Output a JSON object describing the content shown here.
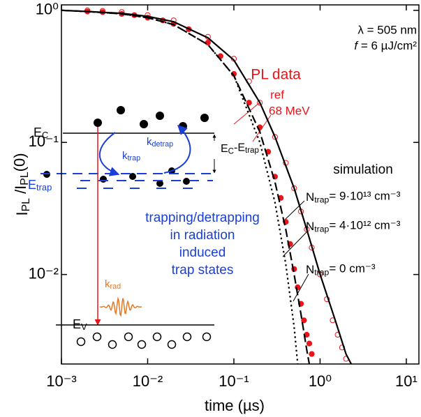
{
  "chart_data": {
    "type": "line",
    "xlabel": "time (µs)",
    "ylabel": [
      "I",
      "PL",
      " /I",
      "PL",
      "(0)"
    ],
    "xscale": "log",
    "yscale": "log",
    "xlim": [
      0.001,
      14
    ],
    "ylim": [
      0.0021,
      1.1
    ],
    "xticks": [
      {
        "value": 0.001,
        "label": "10⁻³"
      },
      {
        "value": 0.01,
        "label": "10⁻²"
      },
      {
        "value": 0.1,
        "label": "10⁻¹"
      },
      {
        "value": 1,
        "label": "10⁰"
      },
      {
        "value": 10,
        "label": "10¹"
      }
    ],
    "yticks": [
      {
        "value": 0.01,
        "label": "10⁻²"
      },
      {
        "value": 0.1,
        "label": "10⁻¹"
      },
      {
        "value": 1,
        "label": "10⁰"
      }
    ],
    "grid": false,
    "annotations": {
      "lambda": "λ = 505 nm",
      "fluence_symbol": "f",
      "fluence": " = 6 µJ/cm²",
      "pl_data": "PL data",
      "simulation": "simulation"
    },
    "series": [
      {
        "name": "ref",
        "type": "scatter",
        "marker": "filled",
        "color": "#e8151b",
        "x": [
          0.002,
          0.003,
          0.005,
          0.007,
          0.01,
          0.015,
          0.02,
          0.03,
          0.05,
          0.07,
          0.1,
          0.15,
          0.2,
          0.25,
          0.3,
          0.35,
          0.4,
          0.45,
          0.5,
          0.55,
          0.6,
          0.65,
          0.7,
          0.75,
          0.8
        ],
        "values": [
          0.98,
          0.97,
          0.94,
          0.92,
          0.88,
          0.84,
          0.79,
          0.72,
          0.57,
          0.45,
          0.33,
          0.2,
          0.13,
          0.085,
          0.055,
          0.038,
          0.025,
          0.017,
          0.011,
          0.008,
          0.006,
          0.0045,
          0.0035,
          0.003,
          0.0025
        ]
      },
      {
        "name": "68 MeV",
        "type": "scatter",
        "marker": "open",
        "color": "#e8151b",
        "x": [
          0.002,
          0.003,
          0.005,
          0.01,
          0.02,
          0.05,
          0.1,
          0.15,
          0.2,
          0.3,
          0.4,
          0.5,
          0.6,
          0.7,
          0.8,
          1,
          1.2,
          1.4,
          1.6,
          1.8,
          2
        ],
        "values": [
          1,
          0.99,
          0.97,
          0.92,
          0.84,
          0.63,
          0.43,
          0.29,
          0.2,
          0.11,
          0.07,
          0.045,
          0.03,
          0.022,
          0.016,
          0.01,
          0.0065,
          0.0045,
          0.0035,
          0.0028,
          0.0023
        ]
      },
      {
        "name": [
          "N",
          "trap",
          "= 9·10¹³ cm⁻³"
        ],
        "type": "line",
        "dash": "solid",
        "color": "#000000",
        "x": [
          0.001,
          0.002,
          0.005,
          0.01,
          0.02,
          0.05,
          0.1,
          0.2,
          0.3,
          0.5,
          0.7,
          1,
          1.5,
          2,
          2.3
        ],
        "values": [
          1,
          0.98,
          0.95,
          0.9,
          0.82,
          0.62,
          0.42,
          0.2,
          0.11,
          0.045,
          0.022,
          0.01,
          0.0045,
          0.0025,
          0.0021
        ]
      },
      {
        "name": [
          "N",
          "trap",
          "= 4·10¹² cm⁻³"
        ],
        "type": "line",
        "dash": "dashed",
        "color": "#000000",
        "x": [
          0.001,
          0.002,
          0.005,
          0.01,
          0.02,
          0.05,
          0.1,
          0.2,
          0.3,
          0.4,
          0.5,
          0.6,
          0.7,
          0.75
        ],
        "values": [
          1,
          0.98,
          0.94,
          0.88,
          0.78,
          0.55,
          0.32,
          0.12,
          0.05,
          0.022,
          0.01,
          0.005,
          0.0027,
          0.0021
        ]
      },
      {
        "name": [
          "N",
          "trap",
          "= 0 cm⁻³"
        ],
        "type": "line",
        "dash": "dotted",
        "color": "#000000",
        "x": [
          0.001,
          0.002,
          0.005,
          0.01,
          0.02,
          0.05,
          0.1,
          0.2,
          0.3,
          0.4,
          0.5,
          0.55
        ],
        "values": [
          1,
          0.98,
          0.94,
          0.88,
          0.78,
          0.55,
          0.32,
          0.1,
          0.035,
          0.012,
          0.004,
          0.0021
        ]
      }
    ],
    "inset": {
      "ec": [
        "E",
        "C"
      ],
      "ktrap": [
        "k",
        "trap"
      ],
      "kdetrap": [
        "k",
        "detrap"
      ],
      "gap": [
        "E",
        "C",
        "-E",
        "trap"
      ],
      "etrap": [
        "E",
        "trap"
      ],
      "description": [
        "trapping/detrapping",
        "in radiation",
        "induced",
        "trap states"
      ],
      "krad": [
        "k",
        "rad"
      ],
      "ev": [
        "E",
        "V"
      ]
    }
  }
}
